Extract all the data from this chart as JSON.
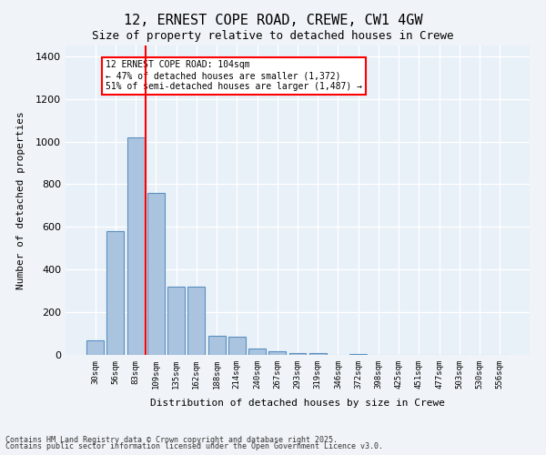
{
  "title": "12, ERNEST COPE ROAD, CREWE, CW1 4GW",
  "subtitle": "Size of property relative to detached houses in Crewe",
  "xlabel": "Distribution of detached houses by size in Crewe",
  "ylabel": "Number of detached properties",
  "categories": [
    "30sqm",
    "56sqm",
    "83sqm",
    "109sqm",
    "135sqm",
    "162sqm",
    "188sqm",
    "214sqm",
    "240sqm",
    "267sqm",
    "293sqm",
    "319sqm",
    "346sqm",
    "372sqm",
    "398sqm",
    "425sqm",
    "451sqm",
    "477sqm",
    "503sqm",
    "530sqm",
    "556sqm"
  ],
  "values": [
    70,
    580,
    1020,
    760,
    320,
    320,
    90,
    85,
    30,
    15,
    10,
    7,
    0,
    5,
    0,
    0,
    0,
    0,
    0,
    0,
    0
  ],
  "bar_color": "#aac4e0",
  "bar_edge_color": "#5a8fbf",
  "background_color": "#e8f0f8",
  "grid_color": "#ffffff",
  "red_line_x": 2.5,
  "annotation_text": "12 ERNEST COPE ROAD: 104sqm\n← 47% of detached houses are smaller (1,372)\n51% of semi-detached houses are larger (1,487) →",
  "annotation_box_color": "#cc0000",
  "ylim": [
    0,
    1450
  ],
  "yticks": [
    0,
    200,
    400,
    600,
    800,
    1000,
    1200,
    1400
  ],
  "footer_line1": "Contains HM Land Registry data © Crown copyright and database right 2025.",
  "footer_line2": "Contains public sector information licensed under the Open Government Licence v3.0."
}
